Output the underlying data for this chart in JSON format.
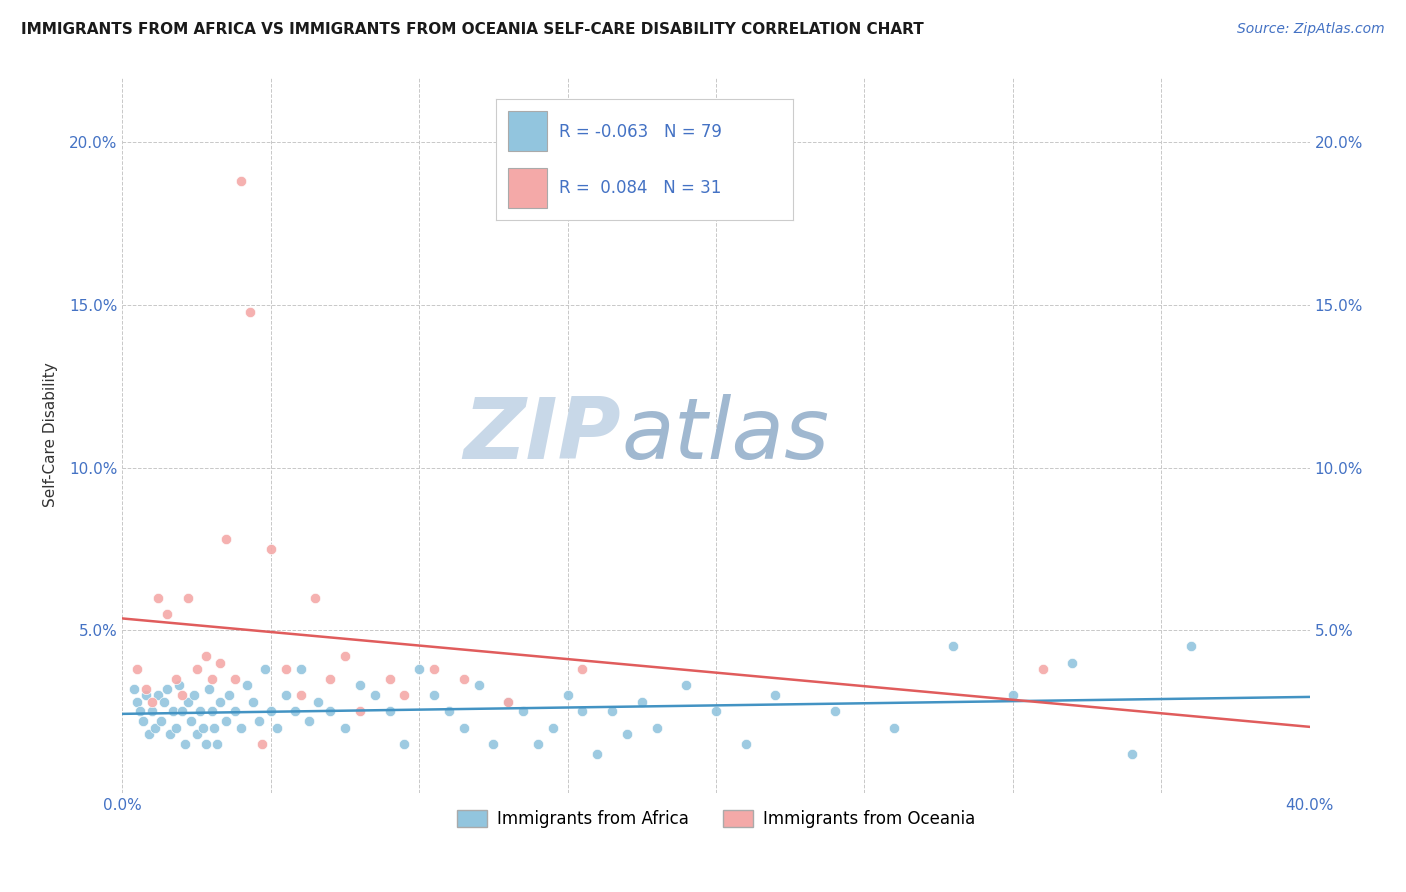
{
  "title": "IMMIGRANTS FROM AFRICA VS IMMIGRANTS FROM OCEANIA SELF-CARE DISABILITY CORRELATION CHART",
  "source": "Source: ZipAtlas.com",
  "ylabel": "Self-Care Disability",
  "xlim": [
    0.0,
    0.4
  ],
  "ylim": [
    0.0,
    0.22
  ],
  "xticks": [
    0.0,
    0.05,
    0.1,
    0.15,
    0.2,
    0.25,
    0.3,
    0.35,
    0.4
  ],
  "yticks": [
    0.0,
    0.05,
    0.1,
    0.15,
    0.2
  ],
  "africa_color": "#92c5de",
  "africa_line_color": "#4393c3",
  "oceania_color": "#f4a9a8",
  "oceania_line_color": "#e05c5c",
  "africa_R": -0.063,
  "africa_N": 79,
  "oceania_R": 0.084,
  "oceania_N": 31,
  "legend_label_africa": "Immigrants from Africa",
  "legend_label_oceania": "Immigrants from Oceania",
  "watermark_zip": "ZIP",
  "watermark_atlas": "atlas",
  "background_color": "#ffffff",
  "grid_color": "#c8c8c8",
  "tick_color": "#4472c4",
  "africa_scatter": [
    [
      0.004,
      0.032
    ],
    [
      0.005,
      0.028
    ],
    [
      0.006,
      0.025
    ],
    [
      0.007,
      0.022
    ],
    [
      0.008,
      0.03
    ],
    [
      0.009,
      0.018
    ],
    [
      0.01,
      0.025
    ],
    [
      0.011,
      0.02
    ],
    [
      0.012,
      0.03
    ],
    [
      0.013,
      0.022
    ],
    [
      0.014,
      0.028
    ],
    [
      0.015,
      0.032
    ],
    [
      0.016,
      0.018
    ],
    [
      0.017,
      0.025
    ],
    [
      0.018,
      0.02
    ],
    [
      0.019,
      0.033
    ],
    [
      0.02,
      0.025
    ],
    [
      0.021,
      0.015
    ],
    [
      0.022,
      0.028
    ],
    [
      0.023,
      0.022
    ],
    [
      0.024,
      0.03
    ],
    [
      0.025,
      0.018
    ],
    [
      0.026,
      0.025
    ],
    [
      0.027,
      0.02
    ],
    [
      0.028,
      0.015
    ],
    [
      0.029,
      0.032
    ],
    [
      0.03,
      0.025
    ],
    [
      0.031,
      0.02
    ],
    [
      0.032,
      0.015
    ],
    [
      0.033,
      0.028
    ],
    [
      0.035,
      0.022
    ],
    [
      0.036,
      0.03
    ],
    [
      0.038,
      0.025
    ],
    [
      0.04,
      0.02
    ],
    [
      0.042,
      0.033
    ],
    [
      0.044,
      0.028
    ],
    [
      0.046,
      0.022
    ],
    [
      0.048,
      0.038
    ],
    [
      0.05,
      0.025
    ],
    [
      0.052,
      0.02
    ],
    [
      0.055,
      0.03
    ],
    [
      0.058,
      0.025
    ],
    [
      0.06,
      0.038
    ],
    [
      0.063,
      0.022
    ],
    [
      0.066,
      0.028
    ],
    [
      0.07,
      0.025
    ],
    [
      0.075,
      0.02
    ],
    [
      0.08,
      0.033
    ],
    [
      0.085,
      0.03
    ],
    [
      0.09,
      0.025
    ],
    [
      0.095,
      0.015
    ],
    [
      0.1,
      0.038
    ],
    [
      0.105,
      0.03
    ],
    [
      0.11,
      0.025
    ],
    [
      0.115,
      0.02
    ],
    [
      0.12,
      0.033
    ],
    [
      0.125,
      0.015
    ],
    [
      0.13,
      0.028
    ],
    [
      0.135,
      0.025
    ],
    [
      0.14,
      0.015
    ],
    [
      0.145,
      0.02
    ],
    [
      0.15,
      0.03
    ],
    [
      0.155,
      0.025
    ],
    [
      0.16,
      0.012
    ],
    [
      0.165,
      0.025
    ],
    [
      0.17,
      0.018
    ],
    [
      0.175,
      0.028
    ],
    [
      0.18,
      0.02
    ],
    [
      0.19,
      0.033
    ],
    [
      0.2,
      0.025
    ],
    [
      0.21,
      0.015
    ],
    [
      0.22,
      0.03
    ],
    [
      0.24,
      0.025
    ],
    [
      0.26,
      0.02
    ],
    [
      0.28,
      0.045
    ],
    [
      0.3,
      0.03
    ],
    [
      0.32,
      0.04
    ],
    [
      0.34,
      0.012
    ],
    [
      0.36,
      0.045
    ]
  ],
  "oceania_scatter": [
    [
      0.005,
      0.038
    ],
    [
      0.008,
      0.032
    ],
    [
      0.01,
      0.028
    ],
    [
      0.012,
      0.06
    ],
    [
      0.015,
      0.055
    ],
    [
      0.018,
      0.035
    ],
    [
      0.02,
      0.03
    ],
    [
      0.022,
      0.06
    ],
    [
      0.025,
      0.038
    ],
    [
      0.028,
      0.042
    ],
    [
      0.03,
      0.035
    ],
    [
      0.033,
      0.04
    ],
    [
      0.035,
      0.078
    ],
    [
      0.038,
      0.035
    ],
    [
      0.04,
      0.188
    ],
    [
      0.043,
      0.148
    ],
    [
      0.047,
      0.015
    ],
    [
      0.05,
      0.075
    ],
    [
      0.055,
      0.038
    ],
    [
      0.06,
      0.03
    ],
    [
      0.065,
      0.06
    ],
    [
      0.07,
      0.035
    ],
    [
      0.075,
      0.042
    ],
    [
      0.08,
      0.025
    ],
    [
      0.09,
      0.035
    ],
    [
      0.095,
      0.03
    ],
    [
      0.105,
      0.038
    ],
    [
      0.115,
      0.035
    ],
    [
      0.13,
      0.028
    ],
    [
      0.155,
      0.038
    ],
    [
      0.31,
      0.038
    ]
  ]
}
